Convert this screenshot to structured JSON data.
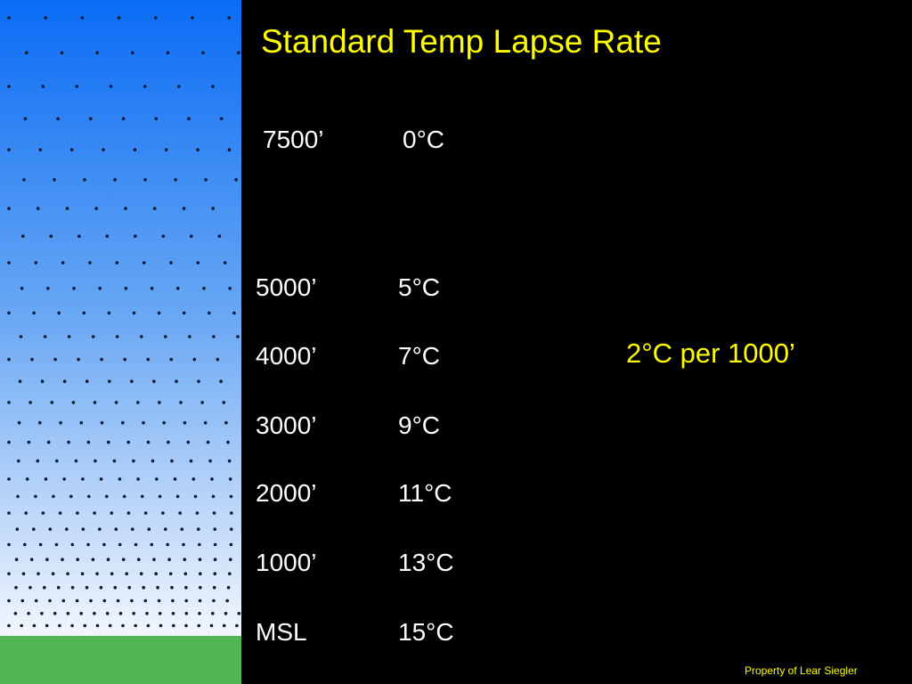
{
  "title": "Standard Temp Lapse Rate",
  "rows": [
    {
      "altitude": "7500’",
      "temperature": "0°C"
    },
    {
      "altitude": "5000’",
      "temperature": "5°C"
    },
    {
      "altitude": "4000’",
      "temperature": "7°C"
    },
    {
      "altitude": "3000’",
      "temperature": "9°C"
    },
    {
      "altitude": "2000’",
      "temperature": "11°C"
    },
    {
      "altitude": "1000’",
      "temperature": "13°C"
    },
    {
      "altitude": "MSL",
      "temperature": "15°C"
    }
  ],
  "note": "2°C per 1000’",
  "footer": "Property of Lear Siegler"
}
